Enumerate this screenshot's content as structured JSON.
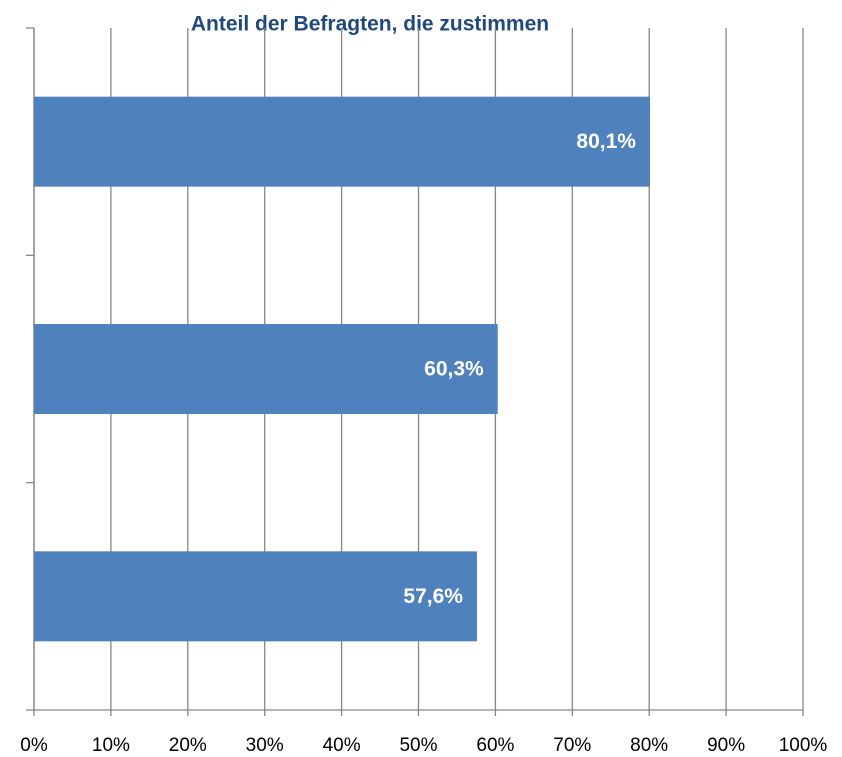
{
  "chart_data": {
    "type": "barh",
    "title": "Anteil der Befragten,  die zustimmen",
    "categories": [
      null,
      null,
      null
    ],
    "values": [
      80.1,
      60.3,
      57.6
    ],
    "value_labels": [
      "80,1%",
      "60,3%",
      "57,6%"
    ],
    "color": "#4f81bd",
    "xlim": [
      0,
      100
    ],
    "xticks": [
      {
        "value": 0,
        "label": "0%"
      },
      {
        "value": 10,
        "label": "10%"
      },
      {
        "value": 20,
        "label": "20%"
      },
      {
        "value": 30,
        "label": "30%"
      },
      {
        "value": 40,
        "label": "40%"
      },
      {
        "value": 50,
        "label": "50%"
      },
      {
        "value": 60,
        "label": "60%"
      },
      {
        "value": 70,
        "label": "70%"
      },
      {
        "value": 80,
        "label": "80%"
      },
      {
        "value": 90,
        "label": "90%"
      },
      {
        "value": 100,
        "label": "100%"
      }
    ],
    "grid": true
  }
}
